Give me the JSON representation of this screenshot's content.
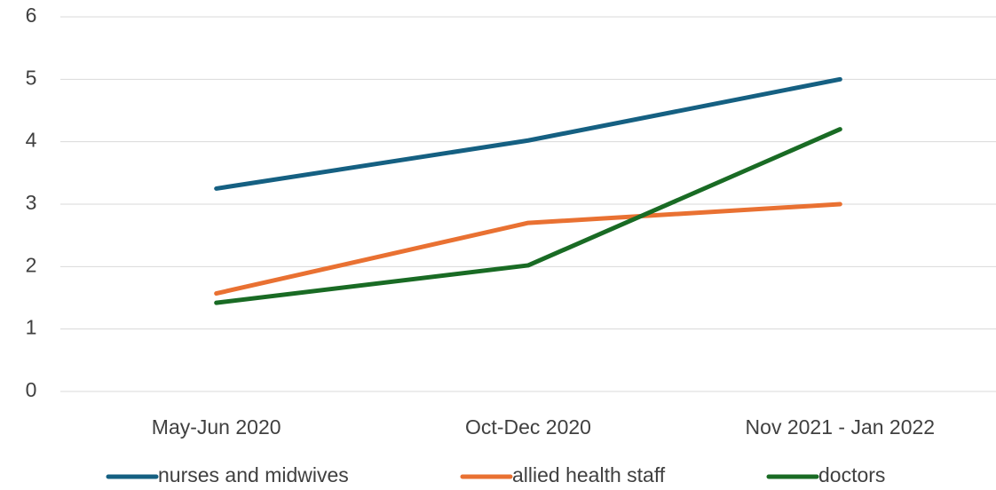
{
  "chart_data": {
    "type": "line",
    "categories": [
      "May-Jun 2020",
      "Oct-Dec 2020",
      "Nov 2021 - Jan 2022"
    ],
    "series": [
      {
        "name": "nurses and midwives",
        "color": "#156082",
        "values": [
          3.25,
          4.02,
          5.0
        ]
      },
      {
        "name": "allied health staff",
        "color": "#e97132",
        "values": [
          1.57,
          2.7,
          3.0
        ]
      },
      {
        "name": "doctors",
        "color": "#196b24",
        "values": [
          1.42,
          2.02,
          4.2
        ]
      }
    ],
    "ylim": [
      0,
      6
    ],
    "yticks": [
      0,
      1,
      2,
      3,
      4,
      5,
      6
    ],
    "grid": true,
    "legend": "bottom"
  }
}
